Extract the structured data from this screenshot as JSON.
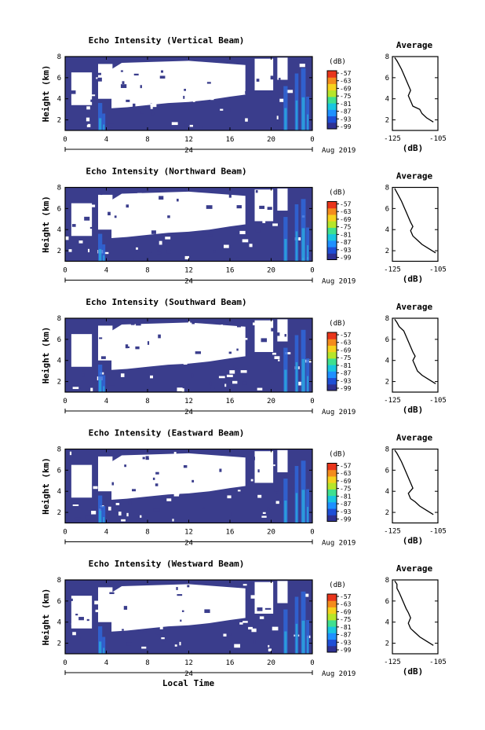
{
  "chart_data": [
    {
      "type": "heatmap",
      "title": "Echo Intensity (Vertical Beam)",
      "ylabel": "Height (km)",
      "ylim": [
        1,
        8
      ],
      "yticks": [
        "2",
        "4",
        "6",
        "8"
      ],
      "xticks": [
        "0",
        "4",
        "8",
        "12",
        "16",
        "20",
        "0"
      ],
      "date_day": "24",
      "date_month": "Aug 2019",
      "colorbar": {
        "unit": "(dB)",
        "ticks": [
          "-57",
          "-63",
          "-69",
          "-75",
          "-81",
          "-87",
          "-93",
          "-99"
        ],
        "colors": [
          "#2e3192",
          "#1e4fd6",
          "#1e90ff",
          "#19c6e0",
          "#3fe08f",
          "#b6e62a",
          "#f6d21e",
          "#f48c1d",
          "#e8351b"
        ]
      },
      "background_color": "#3a3d8c",
      "profile": {
        "title": "Average",
        "xlabel": "(dB)",
        "xticks": [
          "-125",
          "-105"
        ],
        "xlim": [
          -125,
          -105
        ],
        "yticks": [
          "2",
          "4",
          "6",
          "8"
        ],
        "x": [
          -107,
          -110,
          -112,
          -113,
          -116,
          -117,
          -118,
          -117,
          -118,
          -119,
          -120,
          -121,
          -122,
          -123,
          -124
        ],
        "y": [
          1.8,
          2.2,
          2.6,
          3.0,
          3.3,
          3.8,
          4.3,
          4.8,
          5.3,
          5.8,
          6.3,
          6.8,
          7.2,
          7.6,
          7.9
        ]
      }
    },
    {
      "type": "heatmap",
      "title": "Echo Intensity (Northward Beam)",
      "ylabel": "Height (km)",
      "ylim": [
        1,
        8
      ],
      "yticks": [
        "2",
        "4",
        "6",
        "8"
      ],
      "xticks": [
        "0",
        "4",
        "8",
        "12",
        "16",
        "20",
        "0"
      ],
      "date_day": "24",
      "date_month": "Aug 2019",
      "colorbar": {
        "unit": "(dB)",
        "ticks": [
          "-57",
          "-63",
          "-69",
          "-75",
          "-81",
          "-87",
          "-93",
          "-99"
        ],
        "colors": [
          "#2e3192",
          "#1e4fd6",
          "#1e90ff",
          "#19c6e0",
          "#3fe08f",
          "#b6e62a",
          "#f6d21e",
          "#f48c1d",
          "#e8351b"
        ]
      },
      "background_color": "#3a3d8c",
      "profile": {
        "title": "Average",
        "xlabel": "(dB)",
        "xticks": [
          "-125",
          "-105"
        ],
        "xlim": [
          -125,
          -105
        ],
        "yticks": [
          "2",
          "4",
          "6",
          "8"
        ],
        "x": [
          -106,
          -109,
          -112,
          -114,
          -116,
          -117,
          -116,
          -117,
          -118,
          -119,
          -120,
          -121,
          -122,
          -123,
          -124
        ],
        "y": [
          1.8,
          2.2,
          2.6,
          3.0,
          3.4,
          3.9,
          4.3,
          4.7,
          5.2,
          5.7,
          6.2,
          6.7,
          7.1,
          7.5,
          7.9
        ]
      }
    },
    {
      "type": "heatmap",
      "title": "Echo Intensity (Southward Beam)",
      "ylabel": "Height (km)",
      "ylim": [
        1,
        8
      ],
      "yticks": [
        "2",
        "4",
        "6",
        "8"
      ],
      "xticks": [
        "0",
        "4",
        "8",
        "12",
        "16",
        "20",
        "0"
      ],
      "date_day": "24",
      "date_month": "Aug 2019",
      "colorbar": {
        "unit": "(dB)",
        "ticks": [
          "-57",
          "-63",
          "-69",
          "-75",
          "-81",
          "-87",
          "-93",
          "-99"
        ],
        "colors": [
          "#2e3192",
          "#1e4fd6",
          "#1e90ff",
          "#19c6e0",
          "#3fe08f",
          "#b6e62a",
          "#f6d21e",
          "#f48c1d",
          "#e8351b"
        ]
      },
      "background_color": "#3a3d8c",
      "profile": {
        "title": "Average",
        "xlabel": "(dB)",
        "xticks": [
          "-125",
          "-105"
        ],
        "xlim": [
          -125,
          -105
        ],
        "yticks": [
          "2",
          "4",
          "6",
          "8"
        ],
        "x": [
          -106,
          -109,
          -112,
          -114,
          -115,
          -116,
          -115,
          -116,
          -117,
          -118,
          -119,
          -120,
          -122,
          -123,
          -124
        ],
        "y": [
          1.8,
          2.2,
          2.6,
          3.0,
          3.5,
          4.0,
          4.4,
          4.8,
          5.3,
          5.8,
          6.3,
          6.8,
          7.2,
          7.6,
          7.9
        ]
      }
    },
    {
      "type": "heatmap",
      "title": "Echo Intensity (Eastward Beam)",
      "ylabel": "Height (km)",
      "ylim": [
        1,
        8
      ],
      "yticks": [
        "2",
        "4",
        "6",
        "8"
      ],
      "xticks": [
        "0",
        "4",
        "8",
        "12",
        "16",
        "20",
        "0"
      ],
      "date_day": "24",
      "date_month": "Aug 2019",
      "colorbar": {
        "unit": "(dB)",
        "ticks": [
          "-57",
          "-63",
          "-69",
          "-75",
          "-81",
          "-87",
          "-93",
          "-99"
        ],
        "colors": [
          "#2e3192",
          "#1e4fd6",
          "#1e90ff",
          "#19c6e0",
          "#3fe08f",
          "#b6e62a",
          "#f6d21e",
          "#f48c1d",
          "#e8351b"
        ]
      },
      "background_color": "#3a3d8c",
      "profile": {
        "title": "Average",
        "xlabel": "(dB)",
        "xticks": [
          "-125",
          "-105"
        ],
        "xlim": [
          -125,
          -105
        ],
        "yticks": [
          "2",
          "4",
          "6",
          "8"
        ],
        "x": [
          -107,
          -110,
          -113,
          -115,
          -117,
          -118,
          -116,
          -117,
          -118,
          -119,
          -120,
          -121,
          -122,
          -123,
          -124
        ],
        "y": [
          1.8,
          2.2,
          2.6,
          3.0,
          3.3,
          3.8,
          4.3,
          4.8,
          5.3,
          5.8,
          6.3,
          6.8,
          7.2,
          7.6,
          7.9
        ]
      }
    },
    {
      "type": "heatmap",
      "title": "Echo Intensity (Westward Beam)",
      "ylabel": "Height (km)",
      "ylim": [
        1,
        8
      ],
      "yticks": [
        "2",
        "4",
        "6",
        "8"
      ],
      "xticks": [
        "0",
        "4",
        "8",
        "12",
        "16",
        "20",
        "0"
      ],
      "xlabel": "Local Time",
      "date_day": "24",
      "date_month": "Aug 2019",
      "colorbar": {
        "unit": "(dB)",
        "ticks": [
          "-57",
          "-63",
          "-69",
          "-75",
          "-81",
          "-87",
          "-93",
          "-99"
        ],
        "colors": [
          "#2e3192",
          "#1e4fd6",
          "#1e90ff",
          "#19c6e0",
          "#3fe08f",
          "#b6e62a",
          "#f6d21e",
          "#f48c1d",
          "#e8351b"
        ]
      },
      "background_color": "#3a3d8c",
      "profile": {
        "title": "Average",
        "xlabel": "(dB)",
        "xticks": [
          "-125",
          "-105"
        ],
        "xlim": [
          -125,
          -105
        ],
        "yticks": [
          "2",
          "4",
          "6",
          "8"
        ],
        "x": [
          -107,
          -110,
          -113,
          -115,
          -117,
          -118,
          -117,
          -118,
          -119,
          -120,
          -121,
          -122,
          -123,
          -123,
          -124
        ],
        "y": [
          1.8,
          2.2,
          2.6,
          3.0,
          3.4,
          3.9,
          4.4,
          4.9,
          5.3,
          5.8,
          6.3,
          6.8,
          7.2,
          7.6,
          7.9
        ]
      }
    }
  ]
}
